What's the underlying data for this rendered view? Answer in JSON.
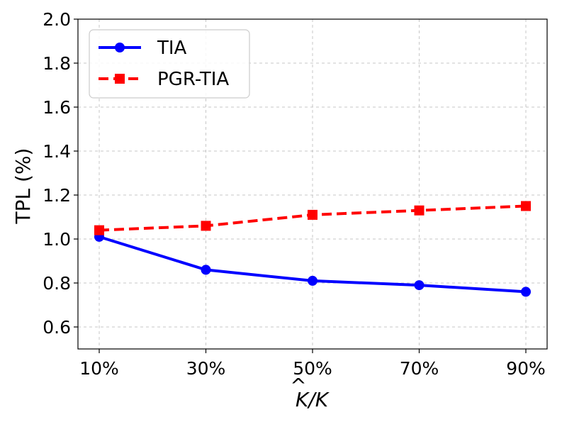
{
  "chart_data": {
    "type": "line",
    "categories": [
      "10%",
      "30%",
      "50%",
      "70%",
      "90%"
    ],
    "xlabel_main": "K",
    "xlabel_hat": "^",
    "xlabel_rest": "/K",
    "ylabel": "TPL (%)",
    "ylim": [
      0.5,
      2.0
    ],
    "yticks": [
      0.6,
      0.8,
      1.0,
      1.2,
      1.4,
      1.6,
      1.8,
      2.0
    ],
    "ytick_labels": [
      "0.6",
      "0.8",
      "1.0",
      "1.2",
      "1.4",
      "1.6",
      "1.8",
      "2.0"
    ],
    "grid": true,
    "legend_position": "top-left",
    "series": [
      {
        "name": "TIA",
        "values": [
          1.01,
          0.86,
          0.81,
          0.79,
          0.76
        ],
        "color": "#0000ff",
        "marker": "circle",
        "line_style": "solid"
      },
      {
        "name": "PGR-TIA",
        "values": [
          1.04,
          1.06,
          1.11,
          1.13,
          1.15
        ],
        "color": "#ff0000",
        "marker": "square",
        "line_style": "dashed"
      }
    ]
  }
}
